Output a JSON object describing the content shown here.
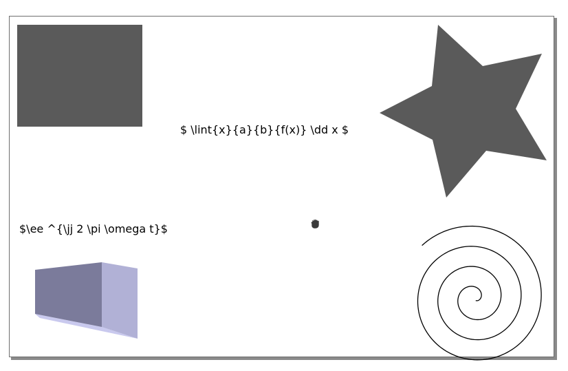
{
  "canvas": {
    "colors": {
      "shape_fill": "#5a5a5a",
      "box_front": "#7b7b9b",
      "box_side": "#b1b1d6",
      "box_bottom": "#c9c9ee",
      "spiral_stroke": "#000000",
      "page_border": "#6e6e6e",
      "page_shadow": "#8a8a8a"
    },
    "formulas": {
      "integral": "$ \\lint{x}{a}{b}{f(x)} \\dd x $",
      "exponential": "$\\ee ^{\\jj 2 \\pi \\omega t}$"
    },
    "cursor": {
      "icon": "hand-grab-icon"
    }
  }
}
